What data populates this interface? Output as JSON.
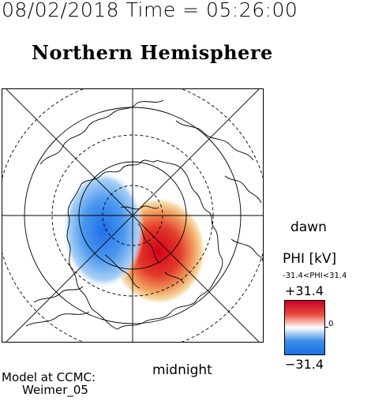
{
  "timestamp": "08/02/2018 Time = 05:26:00",
  "title": "Northern Hemisphere",
  "labels": {
    "dawn": "dawn",
    "midnight": "midnight"
  },
  "credit": {
    "line1": "Model at CCMC:",
    "line2": "Weimer_05"
  },
  "colorbar": {
    "title": "PHI [kV]",
    "range": "-31.4<PHI<31.4",
    "max": "+31.4",
    "min": "−31.4",
    "zero": "0",
    "colors": {
      "positive": "#c8002a",
      "negative": "#1f6fe8",
      "neutral": "#ffffff"
    }
  },
  "map": {
    "projection": "polar-stereographic",
    "latitude_circles_deg": [
      80,
      70,
      60,
      50
    ],
    "meridians": 8
  }
}
